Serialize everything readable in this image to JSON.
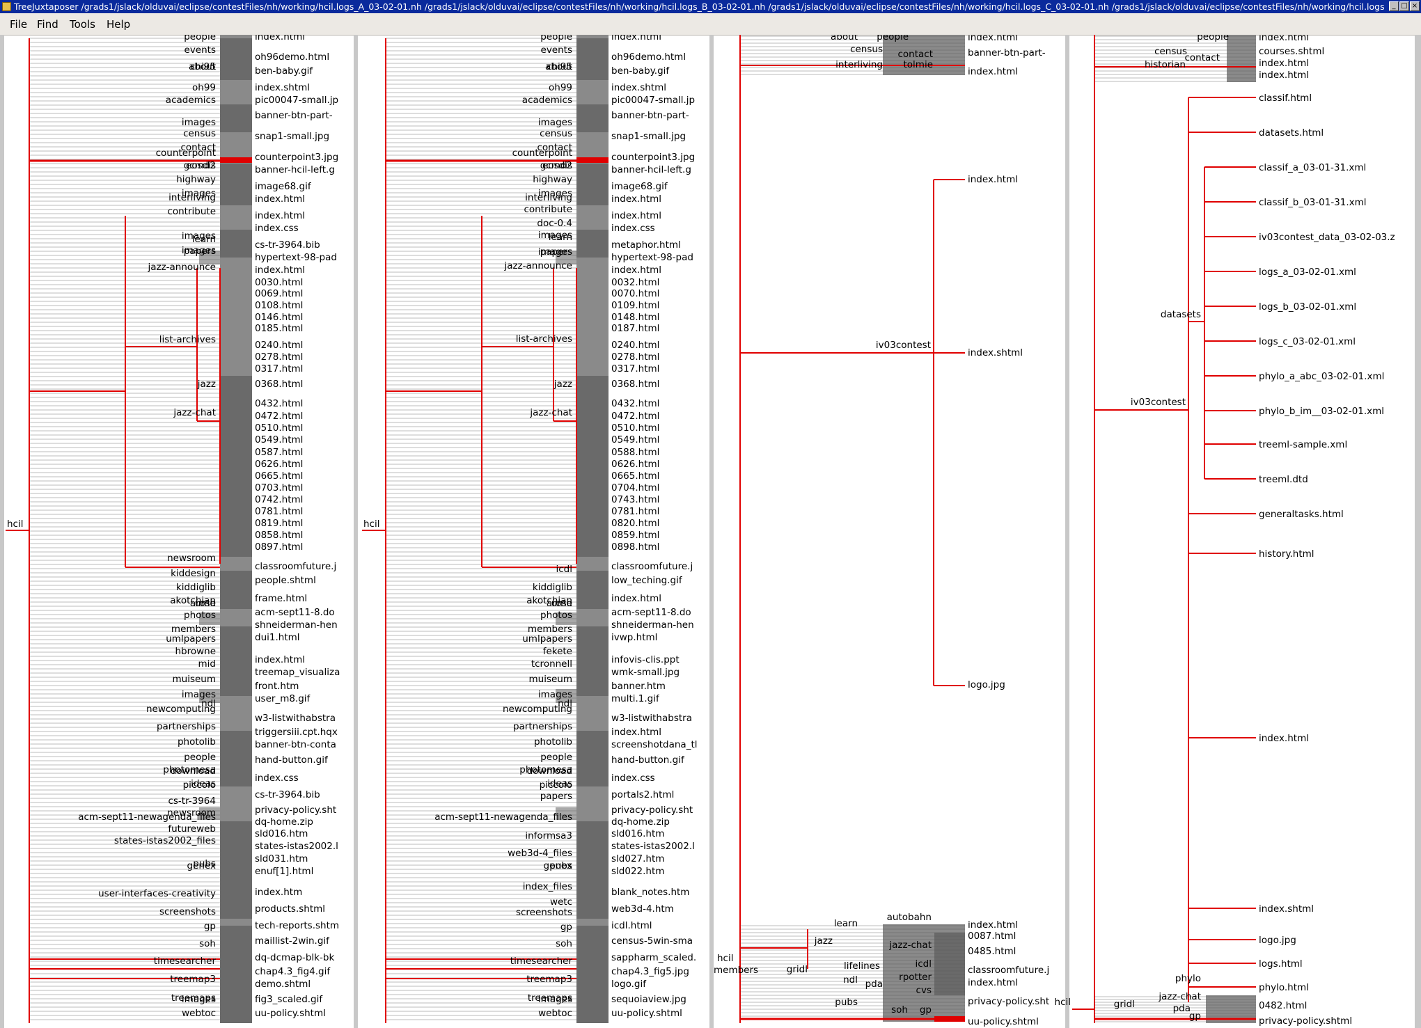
{
  "window": {
    "app_name": "TreeJuxtaposer",
    "title": "TreeJuxtaposer /grads1/jslack/olduvai/eclipse/contestFiles/nh/working/hcil.logs_A_03-02-01.nh /grads1/jslack/olduvai/eclipse/contestFiles/nh/working/hcil.logs_B_03-02-01.nh /grads1/jslack/olduvai/eclipse/contestFiles/nh/working/hcil.logs_C_03-02-01.nh /grads1/jslack/olduvai/eclipse/contestFiles/nh/working/hcil.logs",
    "controls": [
      "_",
      "□",
      "×"
    ]
  },
  "menu": [
    "File",
    "Find",
    "Tools",
    "Help"
  ],
  "colors": {
    "highlight": "#e00000",
    "edge": "#000000",
    "grey_dark": "#6a6a6a",
    "grey_mid": "#8a8a8a",
    "grey_light": "#a8a8a8",
    "separator": "#c8c8c8"
  },
  "panel1": {
    "root": "hcil",
    "nodes": [
      "people",
      "events",
      "about",
      "chi95",
      "oh99",
      "academics",
      "images",
      "census",
      "contact",
      "counterpoint",
      "eosdis",
      "gcmd2",
      "highway",
      "images",
      "interliving",
      "contribute",
      "learn",
      "images",
      "papers",
      "images",
      "jazz-announce",
      "list-archives",
      "jazz",
      "jazz-chat",
      "newsroom",
      "kiddesign",
      "kiddiglib",
      "arose",
      "umd",
      "akotchian",
      "members",
      "photos",
      "umlpapers",
      "hbrowne",
      "mid",
      "muiseum",
      "images",
      "ndl",
      "newcomputing",
      "partnerships",
      "photolib",
      "people",
      "photomesa",
      "download",
      "ideas",
      "piccolo",
      "cs-tr-3964",
      "newsroom",
      "acm-sept11-newagenda_files",
      "futureweb",
      "states-istas2002_files",
      "pubs",
      "genex",
      "user-interfaces-creativity",
      "screenshots",
      "gp",
      "soh",
      "timesearcher",
      "treemap3",
      "treemaps",
      "images",
      "webtoc"
    ],
    "leaves": [
      "index.html",
      "oh96demo.html",
      "ben-baby.gif",
      "index.shtml",
      "pic00047-small.jp",
      "banner-btn-part-",
      "snap1-small.jpg",
      "counterpoint3.jpg",
      "banner-hcil-left.g",
      "image68.gif",
      "index.html",
      "index.html",
      "index.css",
      "cs-tr-3964.bib",
      "hypertext-98-pad",
      "index.html",
      "0030.html",
      "0069.html",
      "0108.html",
      "0146.html",
      "0185.html",
      "0240.html",
      "0278.html",
      "0317.html",
      "0368.html",
      "0432.html",
      "0472.html",
      "0510.html",
      "0549.html",
      "0587.html",
      "0626.html",
      "0665.html",
      "0703.html",
      "0742.html",
      "0781.html",
      "0819.html",
      "0858.html",
      "0897.html",
      "classroomfuture.j",
      "people.shtml",
      "frame.html",
      "acm-sept11-8.do",
      "shneiderman-hen",
      "dui1.html",
      "index.html",
      "treemap_visualiza",
      "front.htm",
      "user_m8.gif",
      "w3-listwithabstra",
      "triggersiii.cpt.hqx",
      "banner-btn-conta",
      "hand-button.gif",
      "index.css",
      "cs-tr-3964.bib",
      "privacy-policy.sht",
      "dq-home.zip",
      "sld016.htm",
      "states-istas2002.l",
      "sld031.htm",
      "enuf[1].html",
      "index.htm",
      "products.shtml",
      "tech-reports.shtm",
      "maillist-2win.gif",
      "dq-dcmap-blk-bk",
      "chap4.3_fig4.gif",
      "demo.shtml",
      "fig3_scaled.gif",
      "uu-policy.shtml"
    ]
  },
  "panel2": {
    "root": "hcil",
    "nodes": [
      "people",
      "events",
      "about",
      "chi95",
      "oh99",
      "academics",
      "images",
      "census",
      "contact",
      "counterpoint",
      "eosdis",
      "gcmd2",
      "highway",
      "images",
      "interliving",
      "contribute",
      "doc-0.4",
      "learn",
      "images",
      "papers",
      "images",
      "jazz-announce",
      "list-archives",
      "jazz",
      "jazz-chat",
      "icdl",
      "kiddiglib",
      "arose",
      "umd",
      "akotchian",
      "members",
      "photos",
      "umlpapers",
      "fekete",
      "tcronnell",
      "muiseum",
      "images",
      "ndl",
      "newcomputing",
      "partnerships",
      "photolib",
      "people",
      "photomesa",
      "download",
      "ideas",
      "piccolo",
      "papers",
      "acm-sept11-newagenda_files",
      "informsa3",
      "web3d-4_files",
      "pubs",
      "genex",
      "index_files",
      "wetc",
      "screenshots",
      "gp",
      "soh",
      "timesearcher",
      "treemap3",
      "treemaps",
      "images",
      "webtoc"
    ],
    "leaves": [
      "index.html",
      "oh96demo.html",
      "ben-baby.gif",
      "index.shtml",
      "pic00047-small.jp",
      "banner-btn-part-",
      "snap1-small.jpg",
      "counterpoint3.jpg",
      "banner-hcil-left.g",
      "image68.gif",
      "index.html",
      "index.html",
      "index.css",
      "metaphor.html",
      "hypertext-98-pad",
      "index.html",
      "0032.html",
      "0070.html",
      "0109.html",
      "0148.html",
      "0187.html",
      "0240.html",
      "0278.html",
      "0317.html",
      "0368.html",
      "0432.html",
      "0472.html",
      "0510.html",
      "0549.html",
      "0588.html",
      "0626.html",
      "0665.html",
      "0704.html",
      "0743.html",
      "0781.html",
      "0820.html",
      "0859.html",
      "0898.html",
      "classroomfuture.j",
      "low_teching.gif",
      "index.html",
      "acm-sept11-8.do",
      "shneiderman-hen",
      "ivwp.html",
      "infovis-clis.ppt",
      "wmk-small.jpg",
      "banner.htm",
      "multi.1.gif",
      "w3-listwithabstra",
      "index.html",
      "screenshotdana_tl",
      "hand-button.gif",
      "index.css",
      "portals2.html",
      "privacy-policy.sht",
      "dq-home.zip",
      "sld016.htm",
      "states-istas2002.l",
      "sld027.htm",
      "sld022.htm",
      "blank_notes.htm",
      "web3d-4.htm",
      "icdl.html",
      "census-5win-sma",
      "sappharm_scaled.",
      "chap4.3_fig5.jpg",
      "logo.gif",
      "sequoiaview.jpg",
      "uu-policy.shtml"
    ]
  },
  "panel3": {
    "top_nodes": [
      "about",
      "people",
      "census",
      "contact",
      "interliving",
      "tolmie"
    ],
    "top_leaves": [
      "index.html",
      "banner-btn-part-",
      "index.html"
    ],
    "mid_node": "iv03contest",
    "mid_leaves": [
      "index.html",
      "index.shtml",
      "logo.jpg"
    ],
    "bottom_nodes": [
      "hcil",
      "members",
      "learn",
      "autobahn",
      "jazz",
      "jazz-chat",
      "lifelines",
      "icdl",
      "gridl",
      "ndl",
      "pda",
      "rpotter",
      "cvs",
      "pubs",
      "soh",
      "gp"
    ],
    "bottom_leaves": [
      "index.html",
      "0087.html",
      "0485.html",
      "classroomfuture.j",
      "index.html",
      "privacy-policy.sht",
      "uu-policy.shtml"
    ]
  },
  "panel4": {
    "top_nodes": [
      "people",
      "census",
      "contact",
      "historian"
    ],
    "top_leaves": [
      "index.html",
      "courses.shtml",
      "index.html",
      "index.html"
    ],
    "iv_node": "iv03contest",
    "datasets_node": "datasets",
    "leaves": [
      "classif.html",
      "datasets.html",
      "classif_a_03-01-31.xml",
      "classif_b_03-01-31.xml",
      "iv03contest_data_03-02-03.z",
      "logs_a_03-02-01.xml",
      "logs_b_03-02-01.xml",
      "logs_c_03-02-01.xml",
      "phylo_a_abc_03-02-01.xml",
      "phylo_b_im__03-02-01.xml",
      "treeml-sample.xml",
      "treeml.dtd",
      "generaltasks.html",
      "history.html",
      "index.html",
      "index.shtml",
      "logo.jpg",
      "logs.html",
      "phylo.html",
      "0482.html",
      "privacy-policy.shtml"
    ],
    "bottom_nodes": [
      "hcil",
      "gridl",
      "phylo",
      "jazz-chat",
      "pda",
      "gp"
    ]
  }
}
